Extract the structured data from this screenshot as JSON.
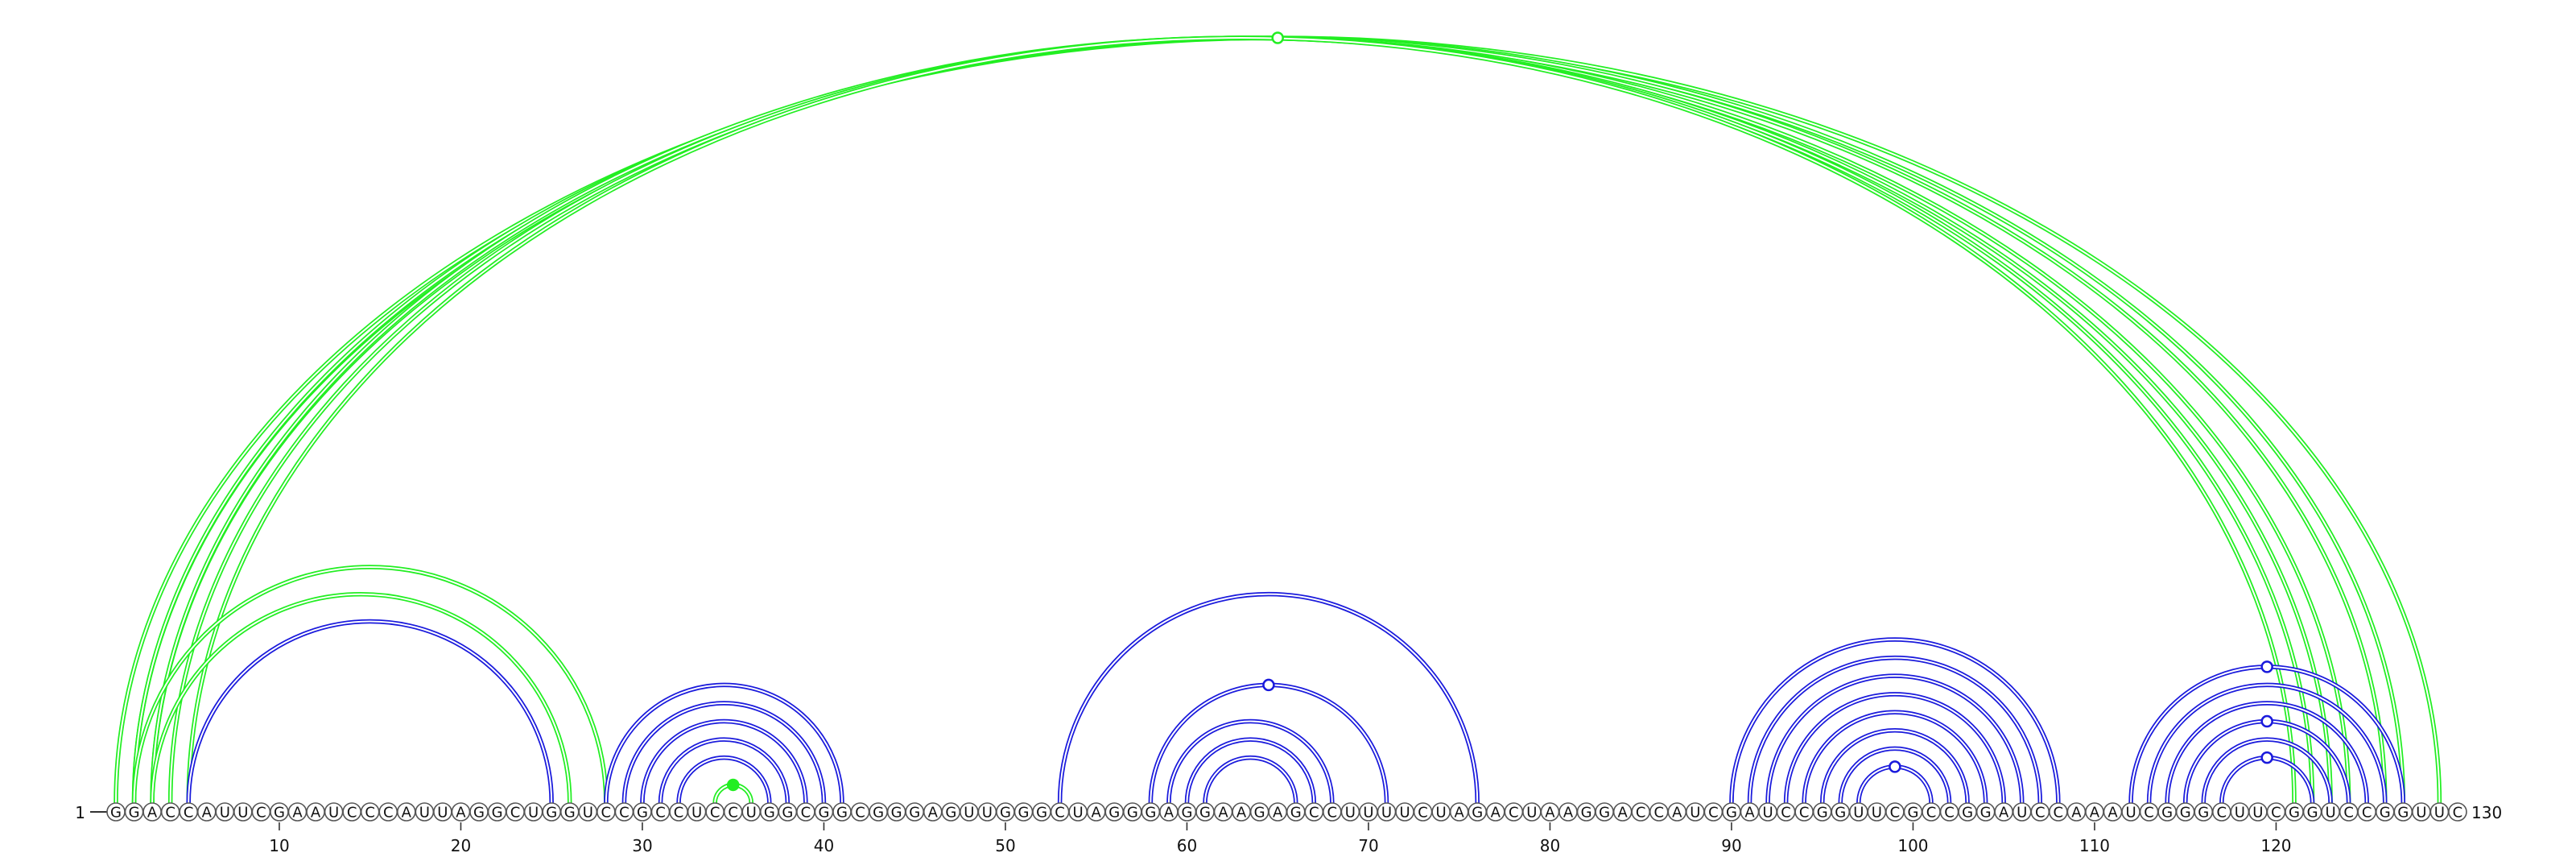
{
  "diagram": {
    "type": "rna-arc-diagram",
    "sequence": "GGACCAUUCGAAUCCCAUUAGGCUGGUCCGCCUCCUGGCGGCGGGAGUUGGGCUAGGGAGGAAGAGCCUUUUCUAGACUAAGGACCAUCGAUCCGGUUCGCCGGAUCCAAAUCGGGCUUCGGUCCGGUUC",
    "start_label": "1",
    "end_label": "130",
    "tick_labels": [
      "10",
      "20",
      "30",
      "40",
      "50",
      "60",
      "70",
      "80",
      "90",
      "100",
      "110",
      "120"
    ],
    "colors": {
      "green": "#22ee22",
      "blue": "#1a1adc",
      "nucleotide_stroke": "#555555",
      "text": "#111111"
    },
    "green_arcs": [
      {
        "i": 1,
        "j": 129
      },
      {
        "i": 2,
        "j": 127
      },
      {
        "i": 2,
        "j": 126
      },
      {
        "i": 3,
        "j": 124
      },
      {
        "i": 3,
        "j": 123
      },
      {
        "i": 4,
        "j": 122
      },
      {
        "i": 5,
        "j": 121
      },
      {
        "i": 2,
        "j": 28
      },
      {
        "i": 3,
        "j": 26
      },
      {
        "i": 34,
        "j": 36
      }
    ],
    "blue_arcs": [
      {
        "i": 5,
        "j": 25
      },
      {
        "i": 28,
        "j": 41
      },
      {
        "i": 29,
        "j": 40
      },
      {
        "i": 30,
        "j": 39
      },
      {
        "i": 31,
        "j": 38
      },
      {
        "i": 32,
        "j": 37
      },
      {
        "i": 53,
        "j": 76
      },
      {
        "i": 58,
        "j": 71
      },
      {
        "i": 59,
        "j": 68
      },
      {
        "i": 60,
        "j": 67
      },
      {
        "i": 61,
        "j": 66
      },
      {
        "i": 90,
        "j": 108
      },
      {
        "i": 91,
        "j": 107
      },
      {
        "i": 92,
        "j": 106
      },
      {
        "i": 93,
        "j": 105
      },
      {
        "i": 94,
        "j": 104
      },
      {
        "i": 95,
        "j": 103
      },
      {
        "i": 96,
        "j": 102
      },
      {
        "i": 97,
        "j": 101
      },
      {
        "i": 112,
        "j": 127
      },
      {
        "i": 113,
        "j": 126
      },
      {
        "i": 114,
        "j": 125
      },
      {
        "i": 115,
        "j": 124
      },
      {
        "i": 116,
        "j": 123
      },
      {
        "i": 117,
        "j": 122
      }
    ],
    "arc_markers": [
      {
        "arc": "green",
        "i": 1,
        "j": 129,
        "filled": false
      },
      {
        "arc": "green",
        "i": 34,
        "j": 36,
        "filled": true
      },
      {
        "arc": "blue",
        "i": 58,
        "j": 71,
        "filled": false
      },
      {
        "arc": "blue",
        "i": 97,
        "j": 101,
        "filled": false
      },
      {
        "arc": "blue",
        "i": 112,
        "j": 127,
        "filled": false
      },
      {
        "arc": "blue",
        "i": 115,
        "j": 124,
        "filled": false
      },
      {
        "arc": "blue",
        "i": 117,
        "j": 122,
        "filled": false
      }
    ]
  }
}
